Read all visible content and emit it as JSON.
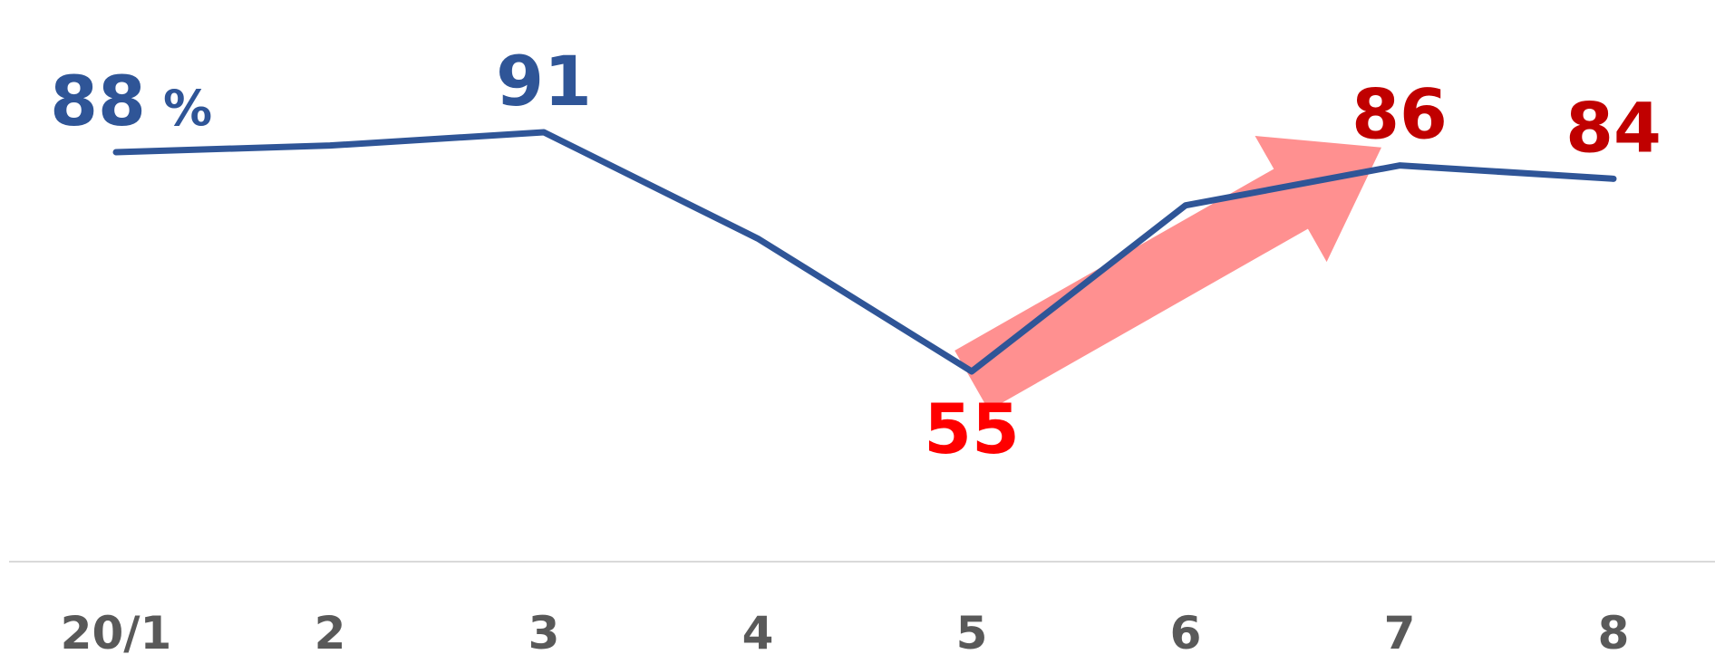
{
  "chart_data": {
    "type": "line",
    "title": "",
    "xlabel": "",
    "ylabel": "",
    "categories": [
      "20/1",
      "2",
      "3",
      "4",
      "5",
      "6",
      "7",
      "8"
    ],
    "series": [
      {
        "name": "",
        "values": [
          88,
          89,
          91,
          75,
          55,
          80,
          86,
          84
        ],
        "color": "#2f5597"
      }
    ],
    "data_labels": [
      {
        "index": 0,
        "text": "88",
        "unit": "%",
        "color": "#2f5597"
      },
      {
        "index": 2,
        "text": "91",
        "color": "#2f5597"
      },
      {
        "index": 4,
        "text": "55",
        "color": "#ff0000"
      },
      {
        "index": 6,
        "text": "86",
        "color": "#c00000"
      },
      {
        "index": 7,
        "text": "84",
        "color": "#c00000"
      }
    ],
    "ylim": [
      40,
      100
    ],
    "grid": false,
    "annotation_arrow": {
      "from_index": 4,
      "to_index": 6,
      "color": "#ff9090",
      "meaning": "upward-trend"
    }
  }
}
